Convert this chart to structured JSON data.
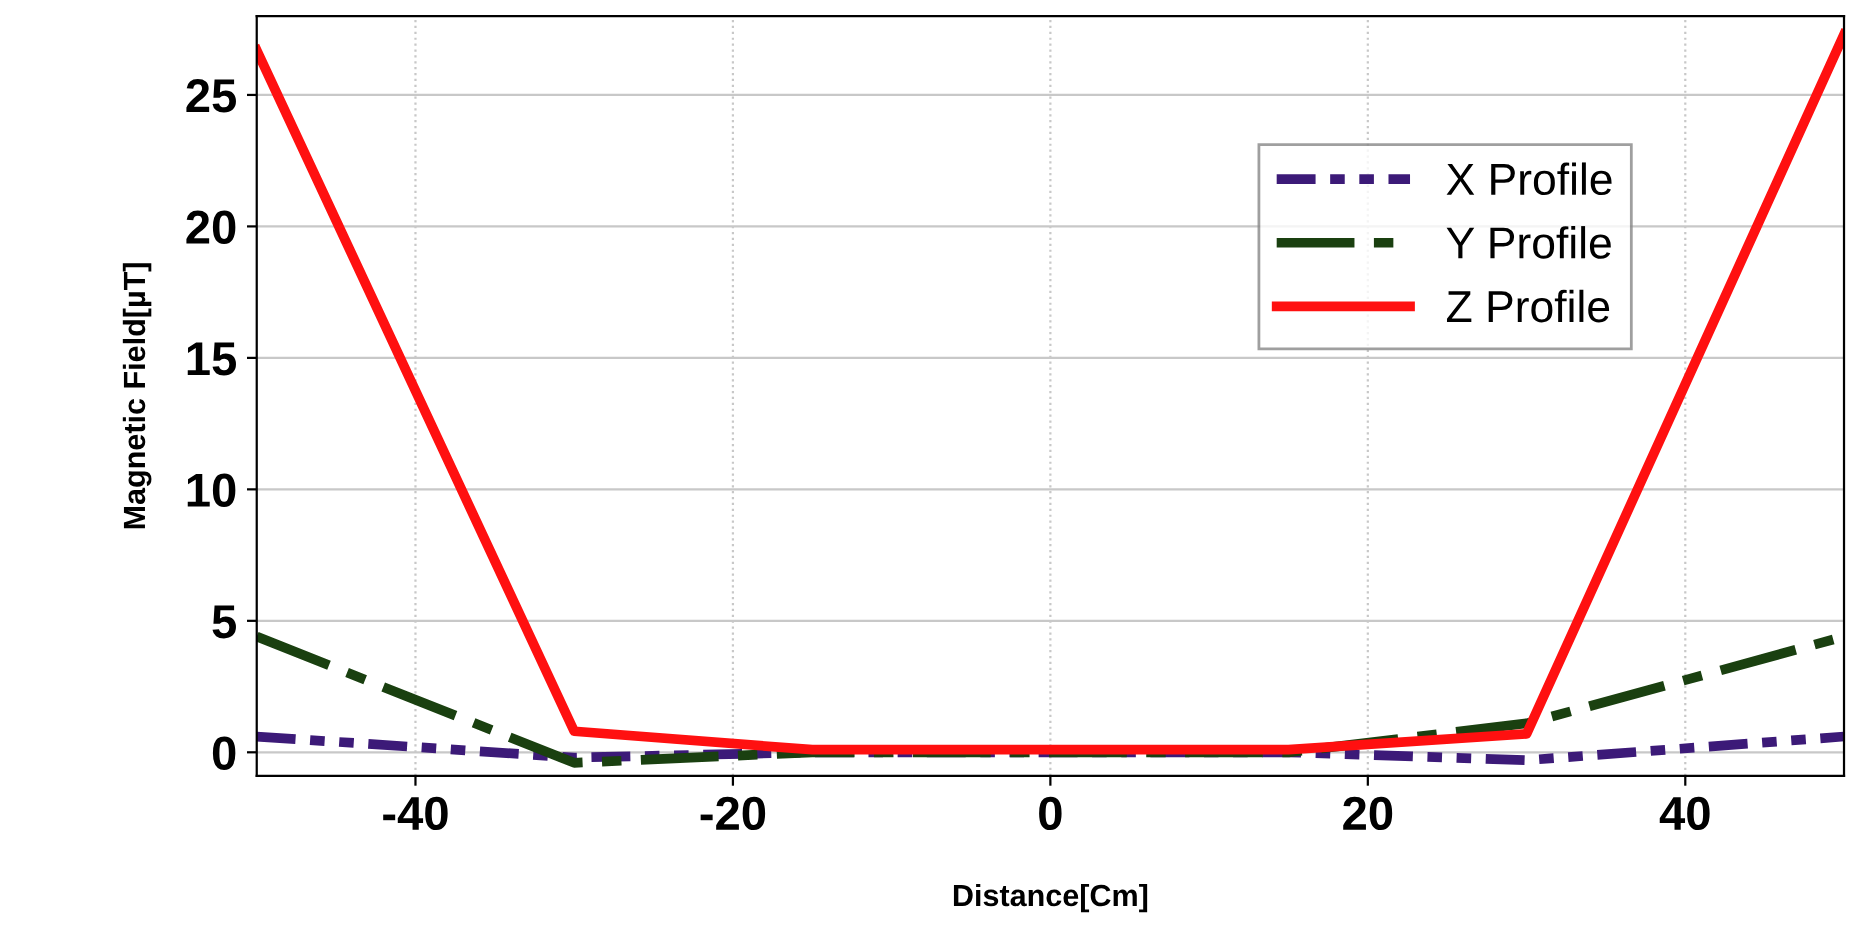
{
  "chart_data": {
    "type": "line",
    "xlabel": "Distance[Cm]",
    "ylabel": "Magnetic Field[µT]",
    "x": [
      -50,
      -30,
      -15,
      15,
      30,
      50
    ],
    "series": [
      {
        "name": "X Profile",
        "color": "#3c1a78",
        "line_style": "dotted",
        "values": [
          0.6,
          -0.2,
          0,
          0,
          -0.3,
          0.6
        ]
      },
      {
        "name": "Y Profile",
        "color": "#1a4010",
        "line_style": "dashed",
        "values": [
          4.4,
          -0.4,
          0,
          0,
          1.1,
          4.4
        ]
      },
      {
        "name": "Z Profile",
        "color": "#ff1010",
        "line_style": "solid",
        "values": [
          26.7,
          0.8,
          0.1,
          0.1,
          0.7,
          27.3
        ]
      }
    ],
    "xlim": [
      -50,
      50
    ],
    "ylim": [
      -0.9,
      28
    ],
    "xticks": [
      -40,
      -20,
      0,
      20,
      40
    ],
    "yticks": [
      0,
      5,
      10,
      15,
      20,
      25
    ],
    "grid": true,
    "legend": "top right",
    "marker": "none"
  }
}
